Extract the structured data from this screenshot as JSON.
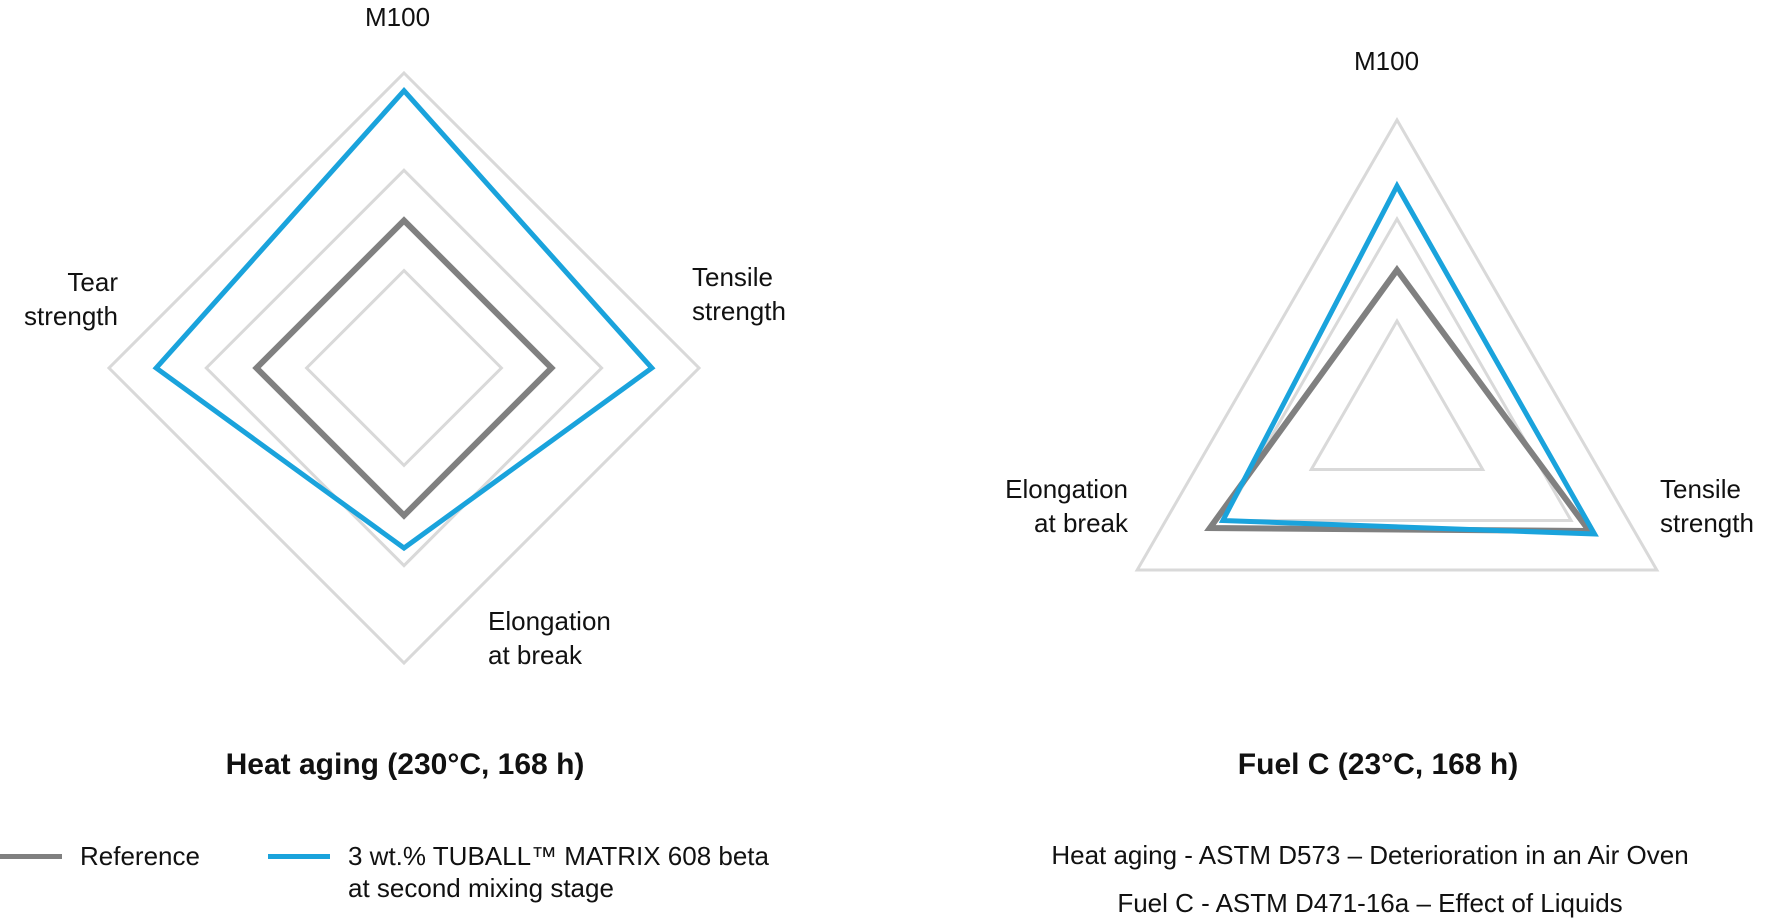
{
  "colors": {
    "grid": "#d9d9d9",
    "reference": "#808080",
    "tuball": "#1aa3dc",
    "text": "#111111"
  },
  "chart_data": [
    {
      "type": "radar",
      "title": "Heat aging (230°C, 168 h)",
      "axes": [
        "M100",
        "Tensile\nstrength",
        "Elongation\nat break",
        "Tear\nstrength"
      ],
      "grid_levels": [
        0.33,
        0.67,
        1.0
      ],
      "series": [
        {
          "name": "Reference",
          "values": [
            0.5,
            0.5,
            0.5,
            0.5
          ]
        },
        {
          "name": "3 wt.% TUBALL™ MATRIX 608 beta\nat second mixing stage",
          "values": [
            0.94,
            0.84,
            0.61,
            0.84
          ]
        }
      ]
    },
    {
      "type": "radar",
      "title": "Fuel C (23°C, 168 h)",
      "axes": [
        "M100",
        "Tensile\nstrength",
        "Elongation\nat break"
      ],
      "grid_levels": [
        0.33,
        0.67,
        1.0
      ],
      "series": [
        {
          "name": "Reference",
          "values": [
            0.5,
            0.74,
            0.72
          ]
        },
        {
          "name": "3 wt.% TUBALL™ MATRIX 608 beta\nat second mixing stage",
          "values": [
            0.78,
            0.76,
            0.67
          ]
        }
      ]
    }
  ],
  "legend": [
    {
      "label": "Reference"
    },
    {
      "label": "3 wt.% TUBALL™ MATRIX 608 beta\nat second mixing stage"
    }
  ],
  "notes": [
    "Heat aging - ASTM D573 – Deterioration in an Air Oven",
    "Fuel C - ASTM D471-16a – Effect of Liquids"
  ]
}
